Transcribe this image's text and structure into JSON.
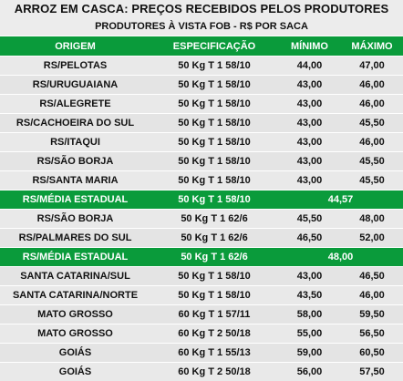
{
  "header": {
    "title": "ARROZ EM CASCA: PREÇOS RECEBIDOS PELOS PRODUTORES",
    "subtitle": "PRODUTORES À VISTA FOB - R$ POR SACA"
  },
  "columns": {
    "origem": "ORIGEM",
    "especificacao": "ESPECIFICAÇÃO",
    "minimo": "MÍNIMO",
    "maximo": "MÁXIMO"
  },
  "rows": [
    {
      "origem": "RS/PELOTAS",
      "spec": "50 Kg T 1 58/10",
      "min": "44,00",
      "max": "47,00"
    },
    {
      "origem": "RS/URUGUAIANA",
      "spec": "50 Kg T 1 58/10",
      "min": "43,00",
      "max": "46,00"
    },
    {
      "origem": "RS/ALEGRETE",
      "spec": "50 Kg T 1 58/10",
      "min": "43,00",
      "max": "46,00"
    },
    {
      "origem": "RS/CACHOEIRA DO SUL",
      "spec": "50 Kg T 1 58/10",
      "min": "43,00",
      "max": "45,50"
    },
    {
      "origem": "RS/ITAQUI",
      "spec": "50 Kg T 1 58/10",
      "min": "43,00",
      "max": "46,00"
    },
    {
      "origem": "RS/SÃO BORJA",
      "spec": "50 Kg T 1 58/10",
      "min": "43,00",
      "max": "45,50"
    },
    {
      "origem": "RS/SANTA MARIA",
      "spec": "50 Kg T 1 58/10",
      "min": "43,00",
      "max": "45,50"
    },
    {
      "origem": "RS/MÉDIA ESTADUAL",
      "spec": "50 Kg T 1 58/10",
      "avg": "44,57"
    },
    {
      "origem": "RS/SÃO BORJA",
      "spec": "50 Kg T 1 62/6",
      "min": "45,50",
      "max": "48,00"
    },
    {
      "origem": "RS/PALMARES DO SUL",
      "spec": "50 Kg T 1 62/6",
      "min": "46,50",
      "max": "52,00"
    },
    {
      "origem": "RS/MÉDIA ESTADUAL",
      "spec": "50 Kg T 1 62/6",
      "avg": "48,00"
    },
    {
      "origem": "SANTA CATARINA/SUL",
      "spec": "50 Kg T 1 58/10",
      "min": "43,00",
      "max": "46,50"
    },
    {
      "origem": "SANTA CATARINA/NORTE",
      "spec": "50 Kg T 1 58/10",
      "min": "43,50",
      "max": "46,00"
    },
    {
      "origem": "MATO GROSSO",
      "spec": "60 Kg T 1 57/11",
      "min": "58,00",
      "max": "59,50"
    },
    {
      "origem": "MATO GROSSO",
      "spec": "60 Kg T 2 50/18",
      "min": "55,00",
      "max": "56,50"
    },
    {
      "origem": "GOIÁS",
      "spec": "60 Kg T 1 55/13",
      "min": "59,00",
      "max": "60,50"
    },
    {
      "origem": "GOIÁS",
      "spec": "60 Kg T 2 50/18",
      "min": "56,00",
      "max": "57,50"
    }
  ],
  "colors": {
    "green": "#0a9b3b",
    "row_bg": "#e9e9e9"
  }
}
